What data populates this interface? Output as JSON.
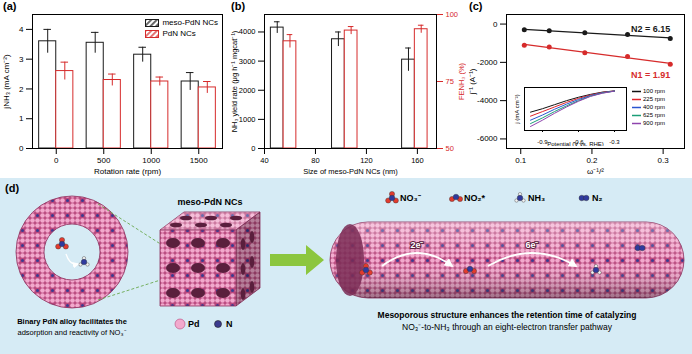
{
  "chart_data": [
    {
      "type": "bar",
      "title": "(a)",
      "x_label": "Rotation rate (rpm)",
      "y_label": "jNH₃ (mA cm⁻²)",
      "categories": [
        "0",
        "500",
        "1000",
        "1500"
      ],
      "series": [
        {
          "name": "meso-PdN NCs",
          "color": "#1a1a1a",
          "values": [
            3.6,
            3.55,
            3.15,
            2.25
          ],
          "errors": [
            0.4,
            0.35,
            0.25,
            0.3
          ]
        },
        {
          "name": "PdN NCs",
          "color": "#d62b2b",
          "values": [
            2.6,
            2.3,
            2.25,
            2.05
          ],
          "errors": [
            0.3,
            0.2,
            0.15,
            0.2
          ]
        }
      ],
      "ylim": [
        0,
        4.5
      ],
      "yticks": [
        0,
        1,
        2,
        3,
        4
      ],
      "legend": "top-right"
    },
    {
      "type": "bar",
      "title": "(b)",
      "x_label": "Size of meso-PdN NCs (nm)",
      "y_label": "NH₃ yield rate (μg h⁻¹ mgcat⁻¹)",
      "y2_label": "FENH₃ (%)",
      "x": [
        55,
        103,
        158
      ],
      "series": [
        {
          "color": "#1a1a1a",
          "values": [
            4150,
            3750,
            3050
          ],
          "errors": [
            200,
            250,
            400
          ]
        },
        {
          "color": "#d62b2b",
          "axis": "y2",
          "values": [
            90,
            94,
            94.5
          ],
          "errors": [
            2.5,
            1.5,
            1.5
          ]
        }
      ],
      "xlim": [
        40,
        175
      ],
      "xticks": [
        40,
        80,
        120,
        160
      ],
      "ylim": [
        0,
        4600
      ],
      "yticks": [
        0,
        1000,
        2000,
        3000,
        4000
      ],
      "y2lim": [
        50,
        100
      ],
      "y2ticks": [
        50,
        75,
        100
      ]
    },
    {
      "type": "scatter",
      "title": "(c)",
      "x_label": "ω⁻¹/²",
      "y_label": "j⁻¹ (A⁻¹)",
      "x": [
        0.105,
        0.14,
        0.19,
        0.25,
        0.31
      ],
      "series": [
        {
          "color": "#1a1a1a",
          "values": [
            -300,
            -350,
            -450,
            -550,
            -750
          ],
          "marker": "circle",
          "line_style": "solid"
        },
        {
          "color": "#d62b2b",
          "values": [
            -1100,
            -1200,
            -1500,
            -1700,
            -2100
          ],
          "marker": "circle",
          "line_style": "solid"
        }
      ],
      "annotations": [
        "N2 = 6.15",
        "N1 = 1.91"
      ],
      "xlim": [
        0.08,
        0.33
      ],
      "xticks": [
        0.1,
        0.2,
        0.3
      ],
      "ylim": [
        -6500,
        500
      ],
      "yticks": [
        -6000,
        -4000,
        -2000,
        0
      ]
    },
    {
      "type": "line",
      "x_label": "Potential (V vs. RHE)",
      "y_label": "j (mA cm⁻²)",
      "x": [
        -1.0,
        -0.9,
        -0.8,
        -0.7,
        -0.6,
        -0.5,
        -0.4,
        -0.3
      ],
      "series": [
        {
          "name": "100 rpm",
          "color": "#111111",
          "values": [
            -3.8,
            -3.2,
            -2.5,
            -1.8,
            -1.2,
            -0.7,
            -0.3,
            -0.1
          ]
        },
        {
          "name": "225 rpm",
          "color": "#e0242a",
          "values": [
            -4.5,
            -3.7,
            -2.9,
            -2.1,
            -1.4,
            -0.8,
            -0.35,
            -0.1
          ]
        },
        {
          "name": "400 rpm",
          "color": "#2a55d0",
          "values": [
            -5.2,
            -4.3,
            -3.3,
            -2.4,
            -1.6,
            -0.9,
            -0.4,
            -0.12
          ]
        },
        {
          "name": "625 rpm",
          "color": "#1b9e77",
          "values": [
            -5.8,
            -4.8,
            -3.7,
            -2.7,
            -1.8,
            -1.0,
            -0.45,
            -0.12
          ]
        },
        {
          "name": "900 rpm",
          "color": "#8e44ad",
          "values": [
            -6.3,
            -5.2,
            -4.0,
            -2.9,
            -1.9,
            -1.05,
            -0.5,
            -0.13
          ]
        }
      ],
      "xlim": [
        -1.05,
        -0.2
      ],
      "xticks": [
        -0.9,
        -0.6,
        -0.3
      ],
      "ylim": [
        -7,
        0.5
      ],
      "yticks": [],
      "tick_labels": "x",
      "legend": "right"
    }
  ],
  "diagram": {
    "label": "(d)",
    "alloy": {
      "caption": [
        "Binary PdN alloy facilitates the",
        "adsorption and reactivity of NO₃⁻"
      ]
    },
    "particle": {
      "title": "meso-PdN NCs",
      "legend": [
        "Pd",
        "N"
      ]
    },
    "channel": {
      "species": [
        "NO₃⁻",
        "NO₂*",
        "NH₃",
        "N₂"
      ],
      "steps": [
        "2e⁻",
        "6e⁻"
      ],
      "caption": [
        "Mesoporous structure enhances the retention time of catalyzing",
        "NO₃⁻-to-NH₃ through an eight-electron transfer pathway"
      ]
    }
  }
}
